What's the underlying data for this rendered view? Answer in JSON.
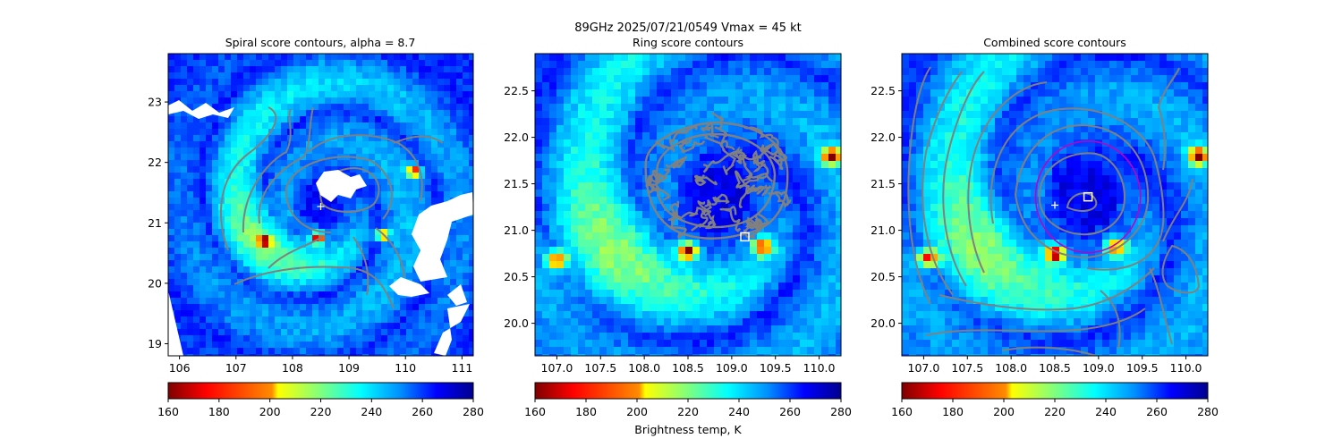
{
  "figure": {
    "suptitle_line1": "89GHz  2025/07/21/0549    Vmax = 45 kt"
  },
  "chart_data": [
    {
      "type": "heatmap",
      "title": "Spiral score contours, alpha =  8.7",
      "xlim": [
        105.8,
        111.2
      ],
      "ylim": [
        18.8,
        23.8
      ],
      "xticks": [
        106,
        107,
        108,
        109,
        110,
        111
      ],
      "yticks": [
        19,
        20,
        21,
        22,
        23
      ],
      "xtick_labels": [
        "106",
        "107",
        "108",
        "109",
        "110",
        "111"
      ],
      "ytick_labels": [
        "19",
        "20",
        "21",
        "22",
        "23"
      ],
      "value_label": "Brightness temp, K",
      "center_estimates": [
        {
          "marker": "plus",
          "color": "#ffffff",
          "x": 108.5,
          "y": 21.27
        }
      ],
      "cold_spots_K": [
        {
          "x": 108.45,
          "y": 20.75,
          "value": 165
        },
        {
          "x": 110.15,
          "y": 21.85,
          "value": 170
        },
        {
          "x": 107.5,
          "y": 20.7,
          "value": 185
        },
        {
          "x": 109.6,
          "y": 20.8,
          "value": 185
        }
      ]
    },
    {
      "type": "heatmap",
      "title": "Ring score contours",
      "xlim": [
        106.75,
        110.25
      ],
      "ylim": [
        19.65,
        22.9
      ],
      "xticks": [
        107.0,
        107.5,
        108.0,
        108.5,
        109.0,
        109.5,
        110.0
      ],
      "yticks": [
        20.0,
        20.5,
        21.0,
        21.5,
        22.0,
        22.5
      ],
      "xtick_labels": [
        "107.0",
        "107.5",
        "108.0",
        "108.5",
        "109.0",
        "109.5",
        "110.0"
      ],
      "ytick_labels": [
        "20.0",
        "20.5",
        "21.0",
        "21.5",
        "22.0",
        "22.5"
      ],
      "value_label": "Brightness temp, K",
      "center_estimates": [
        {
          "marker": "square",
          "color": "#ffffff",
          "x": 109.15,
          "y": 20.93
        }
      ],
      "cold_spots_K": [
        {
          "x": 108.5,
          "y": 20.78,
          "value": 165
        },
        {
          "x": 110.15,
          "y": 21.8,
          "value": 170
        },
        {
          "x": 107.0,
          "y": 20.68,
          "value": 185
        },
        {
          "x": 109.35,
          "y": 20.82,
          "value": 190
        }
      ]
    },
    {
      "type": "heatmap",
      "title": "Combined score contours",
      "xlim": [
        106.75,
        110.25
      ],
      "ylim": [
        19.65,
        22.9
      ],
      "xticks": [
        107.0,
        107.5,
        108.0,
        108.5,
        109.0,
        109.5,
        110.0
      ],
      "yticks": [
        20.0,
        20.5,
        21.0,
        21.5,
        22.0,
        22.5
      ],
      "xtick_labels": [
        "107.0",
        "107.5",
        "108.0",
        "108.5",
        "109.0",
        "109.5",
        "110.0"
      ],
      "ytick_labels": [
        "20.0",
        "20.5",
        "21.0",
        "21.5",
        "22.0",
        "22.5"
      ],
      "value_label": "Brightness temp, K",
      "center_estimates": [
        {
          "marker": "plus",
          "color": "#ffffff",
          "x": 108.5,
          "y": 21.27
        },
        {
          "marker": "square",
          "color": "#ffffff",
          "x": 108.88,
          "y": 21.36
        }
      ],
      "ring_circle": {
        "color": "#c000c0",
        "center_x": 108.88,
        "center_y": 21.36,
        "radius_deg": 0.6
      },
      "cold_spots_K": [
        {
          "x": 108.5,
          "y": 20.75,
          "value": 165
        },
        {
          "x": 110.15,
          "y": 21.8,
          "value": 170
        },
        {
          "x": 107.05,
          "y": 20.7,
          "value": 185
        },
        {
          "x": 109.2,
          "y": 20.82,
          "value": 190
        }
      ]
    }
  ],
  "colorbars": [
    {
      "vmin": 160,
      "vmax": 280,
      "ticks": [
        160,
        180,
        200,
        220,
        240,
        260,
        280
      ],
      "tick_labels": [
        "160",
        "180",
        "200",
        "220",
        "240",
        "260",
        "280"
      ]
    },
    {
      "vmin": 160,
      "vmax": 280,
      "ticks": [
        160,
        180,
        200,
        220,
        240,
        260,
        280
      ],
      "tick_labels": [
        "160",
        "180",
        "200",
        "220",
        "240",
        "260",
        "280"
      ],
      "label": "Brightness temp, K"
    },
    {
      "vmin": 160,
      "vmax": 280,
      "ticks": [
        160,
        180,
        200,
        220,
        240,
        260,
        280
      ],
      "tick_labels": [
        "160",
        "180",
        "200",
        "220",
        "240",
        "260",
        "280"
      ]
    }
  ],
  "colors": {
    "colormap": [
      "#7f0000",
      "#ff0000",
      "#ff8c00",
      "#ffff00",
      "#7fff7f",
      "#00ffff",
      "#0090ff",
      "#0000ff",
      "#00008f"
    ],
    "contour": "#808080",
    "missing": "#ffffff",
    "marker": "#ffffff",
    "ring": "#c000c0"
  }
}
